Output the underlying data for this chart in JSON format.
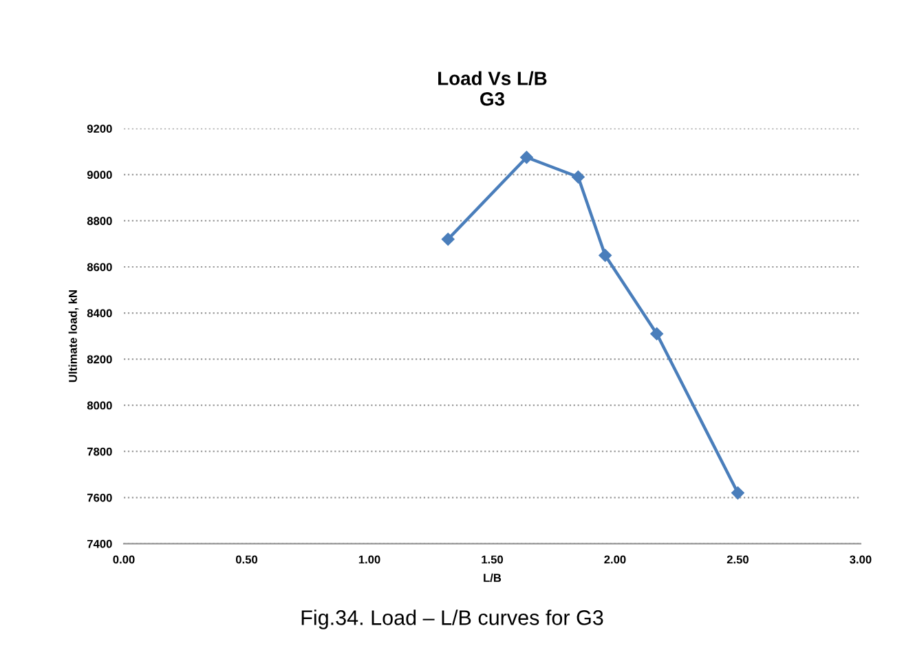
{
  "chart_data": {
    "type": "line",
    "title": "Load Vs L/B\nG3",
    "xlabel": "L/B",
    "ylabel": "Ultimate load, kN",
    "annotations": [
      "Fig.34. Load – L/B curves for G3"
    ],
    "x": [
      1.32,
      1.64,
      1.85,
      1.96,
      2.17,
      2.5
    ],
    "series": [
      {
        "color": "#4a7ebb",
        "values": [
          8720,
          9075,
          8990,
          8650,
          8310,
          7620
        ]
      }
    ],
    "xlim": [
      0,
      3
    ],
    "ylim": [
      7400,
      9200
    ],
    "xticks": [
      {
        "value": 0,
        "label": "0.00"
      },
      {
        "value": 0.5,
        "label": "0.50"
      },
      {
        "value": 1,
        "label": "1.00"
      },
      {
        "value": 1.5,
        "label": "1.50"
      },
      {
        "value": 2,
        "label": "2.00"
      },
      {
        "value": 2.5,
        "label": "2.50"
      },
      {
        "value": 3,
        "label": "3.00"
      }
    ],
    "yticks": [
      7400,
      7600,
      7800,
      8000,
      8200,
      8400,
      8600,
      8800,
      9000,
      9200
    ],
    "grid": "y",
    "legend": false,
    "marker": "diamond",
    "line_style": "solid"
  }
}
